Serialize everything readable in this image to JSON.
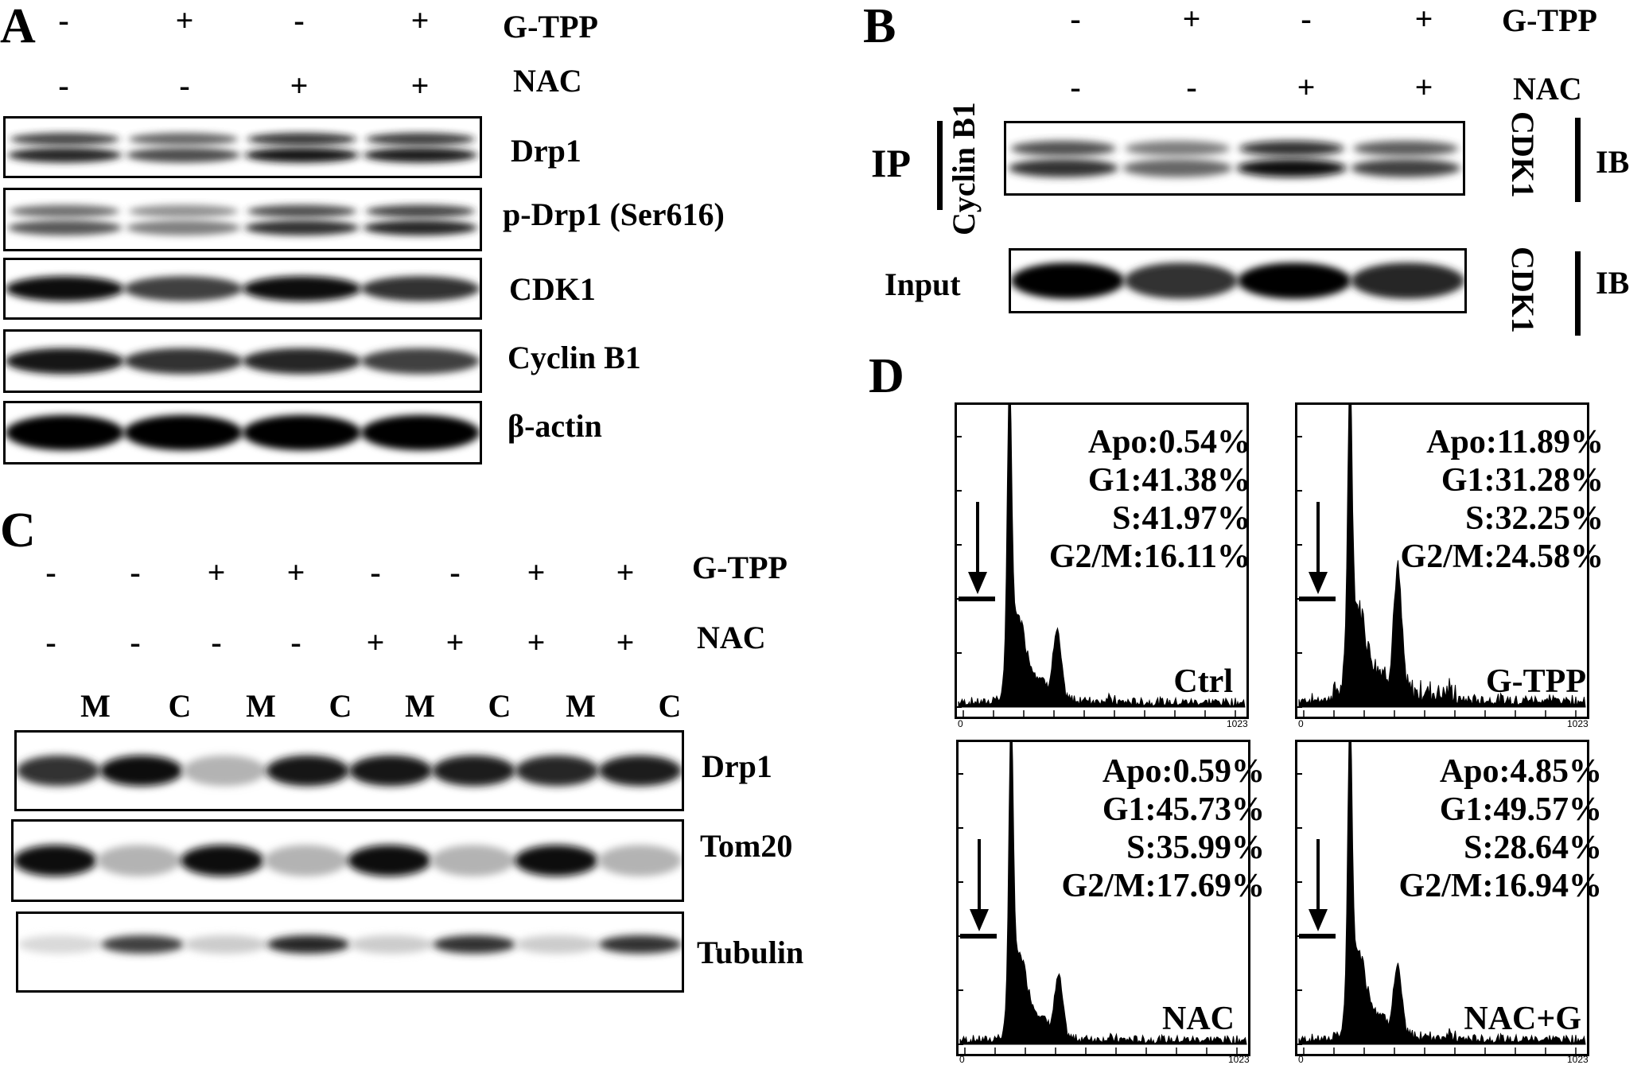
{
  "panel_A": {
    "letter": "A",
    "conditions": [
      {
        "name": "G-TPP",
        "signs": [
          "-",
          "+",
          "-",
          "+"
        ]
      },
      {
        "name": "NAC",
        "signs": [
          "-",
          "-",
          "+",
          "+"
        ]
      }
    ],
    "bands": [
      {
        "label": "Drp1",
        "intensity": [
          0.85,
          0.7,
          0.9,
          0.88
        ],
        "double": true
      },
      {
        "label": "p-Drp1 (Ser616)",
        "intensity": [
          0.65,
          0.5,
          0.8,
          0.85
        ],
        "double": true
      },
      {
        "label": "CDK1",
        "intensity": [
          0.95,
          0.75,
          0.95,
          0.8
        ],
        "double": false
      },
      {
        "label": "Cyclin B1",
        "intensity": [
          0.9,
          0.8,
          0.85,
          0.75
        ],
        "double": false
      },
      {
        "label": "β-actin",
        "intensity": [
          0.98,
          0.98,
          0.98,
          0.98
        ],
        "double": false
      }
    ]
  },
  "panel_B": {
    "letter": "B",
    "conditions": [
      {
        "name": "G-TPP",
        "signs": [
          "-",
          "+",
          "-",
          "+"
        ]
      },
      {
        "name": "NAC",
        "signs": [
          "-",
          "-",
          "+",
          "+"
        ]
      }
    ],
    "ip_label": "IP",
    "ip_antibody": "Cyclin B1",
    "input_label": "Input",
    "ib_antibody": "CDK1",
    "ib_label": "IB",
    "ip_band_intensity": [
      0.8,
      0.6,
      0.95,
      0.75
    ],
    "input_band_intensity": [
      0.98,
      0.8,
      0.99,
      0.85
    ]
  },
  "panel_C": {
    "letter": "C",
    "conditions": [
      {
        "name": "G-TPP",
        "signs": [
          "-",
          "-",
          "+",
          "+",
          "-",
          "-",
          "+",
          "+"
        ]
      },
      {
        "name": "NAC",
        "signs": [
          "-",
          "-",
          "-",
          "-",
          "+",
          "+",
          "+",
          "+"
        ]
      }
    ],
    "fractions": [
      "M",
      "C",
      "M",
      "C",
      "M",
      "C",
      "M",
      "C"
    ],
    "bands": [
      {
        "label": "Drp1",
        "intensity": [
          0.8,
          0.95,
          0.3,
          0.9,
          0.9,
          0.88,
          0.85,
          0.88
        ]
      },
      {
        "label": "Tom20",
        "intensity": [
          0.95,
          0.3,
          0.95,
          0.3,
          0.95,
          0.3,
          0.95,
          0.3
        ]
      },
      {
        "label": "Tubulin",
        "intensity": [
          0.15,
          0.75,
          0.2,
          0.85,
          0.2,
          0.8,
          0.2,
          0.8
        ]
      }
    ]
  },
  "panel_D": {
    "letter": "D",
    "axis_min": "0",
    "axis_max": "1023",
    "histograms": [
      {
        "stats": [
          "Apo:0.54%",
          "G1:41.38%",
          "S:41.97%",
          "G2/M:16.11%"
        ],
        "label": "Ctrl",
        "g1_height": 0.98,
        "g2_height": 0.22,
        "noise": 0.02
      },
      {
        "stats": [
          "Apo:11.89%",
          "G1:31.28%",
          "S:32.25%",
          "G2/M:24.58%"
        ],
        "label": "G-TPP",
        "g1_height": 0.98,
        "g2_height": 0.4,
        "noise": 0.08
      },
      {
        "stats": [
          "Apo:0.59%",
          "G1:45.73%",
          "S:35.99%",
          "G2/M:17.69%"
        ],
        "label": "NAC",
        "g1_height": 0.98,
        "g2_height": 0.2,
        "noise": 0.01
      },
      {
        "stats": [
          "Apo:4.85%",
          "G1:49.57%",
          "S:28.64%",
          "G2/M:16.94%"
        ],
        "label": "NAC+G",
        "g1_height": 0.98,
        "g2_height": 0.22,
        "noise": 0.03
      }
    ]
  }
}
